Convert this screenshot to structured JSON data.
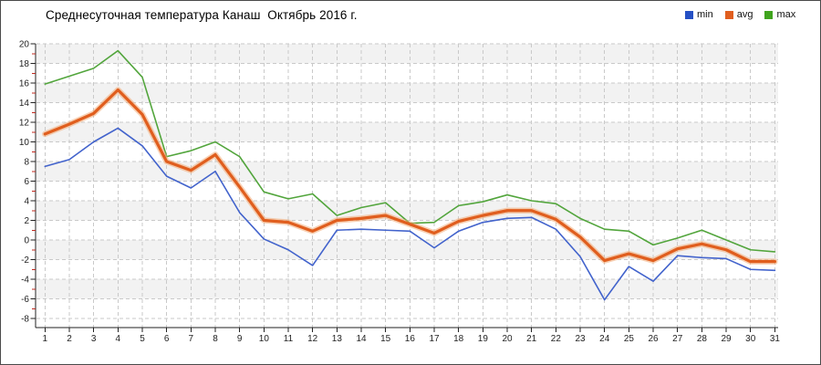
{
  "chart_data": {
    "type": "line",
    "title": "Среднесуточная температура Канаш  Октябрь 2016 г.",
    "x": [
      1,
      2,
      3,
      4,
      5,
      6,
      7,
      8,
      9,
      10,
      11,
      12,
      13,
      14,
      15,
      16,
      17,
      18,
      19,
      20,
      21,
      22,
      23,
      24,
      25,
      26,
      27,
      28,
      29,
      30,
      31
    ],
    "series": [
      {
        "name": "min",
        "color": "#4263cc",
        "legend_color": "#2550c4",
        "values": [
          7.5,
          8.2,
          10.0,
          11.4,
          9.6,
          6.5,
          5.3,
          7.0,
          2.8,
          0.1,
          -1.0,
          -2.6,
          1.0,
          1.1,
          1.0,
          0.9,
          -0.8,
          0.9,
          1.8,
          2.2,
          2.3,
          1.1,
          -1.7,
          -6.1,
          -2.7,
          -4.2,
          -1.6,
          -1.8,
          -1.9,
          -3.0,
          -3.1
        ]
      },
      {
        "name": "avg",
        "color": "#e05e1e",
        "halo_color": "#f3ab77",
        "legend_color": "#e05e1e",
        "values": [
          10.8,
          11.8,
          12.9,
          15.3,
          12.8,
          8.0,
          7.1,
          8.7,
          5.4,
          2.0,
          1.8,
          0.9,
          2.0,
          2.2,
          2.5,
          1.6,
          0.7,
          1.9,
          2.5,
          3.0,
          3.0,
          2.1,
          0.3,
          -2.1,
          -1.4,
          -2.1,
          -0.9,
          -0.4,
          -1.0,
          -2.2,
          -2.2
        ]
      },
      {
        "name": "max",
        "color": "#52a53c",
        "legend_color": "#40a41e",
        "values": [
          15.9,
          16.7,
          17.5,
          19.3,
          16.6,
          8.5,
          9.1,
          10.0,
          8.5,
          4.9,
          4.2,
          4.7,
          2.5,
          3.3,
          3.8,
          1.7,
          1.8,
          3.5,
          3.9,
          4.6,
          4.0,
          3.7,
          2.2,
          1.1,
          0.9,
          -0.5,
          0.2,
          1.0,
          0.0,
          -1.0,
          -1.2
        ]
      }
    ],
    "ylim": [
      -8,
      20
    ],
    "y_ticks": [
      20,
      18,
      16,
      14,
      12,
      10,
      8,
      6,
      4,
      2,
      0,
      -2,
      -4,
      -6,
      -8
    ],
    "legend_position": "top-right",
    "grid": {
      "horizontal": true,
      "vertical": true,
      "style": "dashed",
      "color": "#c9c9c9"
    },
    "band_colors": [
      "#f2f2f2",
      "#ffffff"
    ],
    "axis_color": "#222222",
    "minor_tick_color": "#c0281e"
  }
}
